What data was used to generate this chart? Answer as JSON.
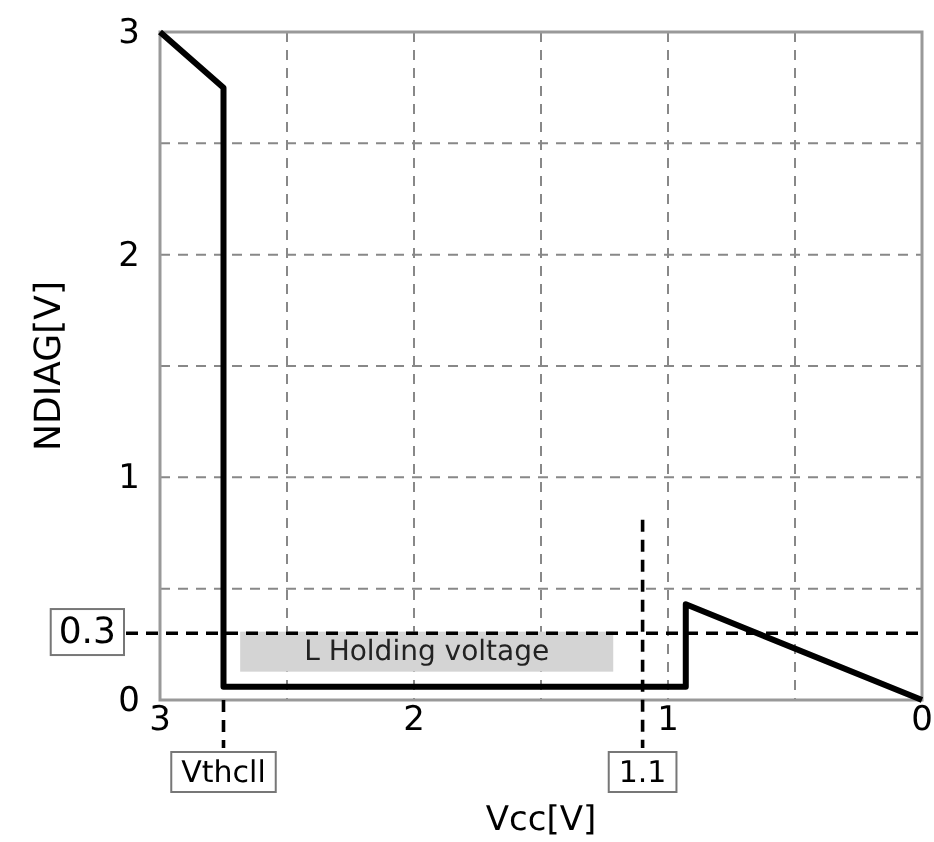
{
  "chart_data": {
    "type": "line",
    "xlabel": "Vcc[V]",
    "ylabel": "NDIAG[V]",
    "x": [
      3,
      2.75,
      2.75,
      0.93,
      0.93,
      0
    ],
    "series": [
      {
        "color": "#000000",
        "values": [
          3,
          2.75,
          0.06,
          0.06,
          0.43,
          0
        ]
      }
    ],
    "xlim": [
      3,
      0
    ],
    "ylim": [
      0,
      3
    ],
    "xticks": [
      3,
      {
        "value": 2.5,
        "label": null
      },
      2,
      {
        "value": 1.5,
        "label": null
      },
      1,
      {
        "value": 0.5,
        "label": null
      },
      0
    ],
    "yticks": [
      0,
      {
        "value": 0.5,
        "label": null
      },
      1,
      {
        "value": 1.5,
        "label": null
      },
      2,
      {
        "value": 2.5,
        "label": null
      },
      3
    ],
    "grid": true,
    "marker": "none",
    "line_style": "solid",
    "ref_lines": [
      {
        "axis": "y",
        "value": 0.3,
        "label": "0.3",
        "line_style": "dashed"
      },
      {
        "axis": "x",
        "value": 1.1,
        "label": "1.1",
        "line_style": "dashed"
      },
      {
        "axis": "x",
        "value": 2.75,
        "label": "Vthcll",
        "line_style": "dashed"
      }
    ],
    "annotations": [
      "L Holding voltage"
    ]
  }
}
